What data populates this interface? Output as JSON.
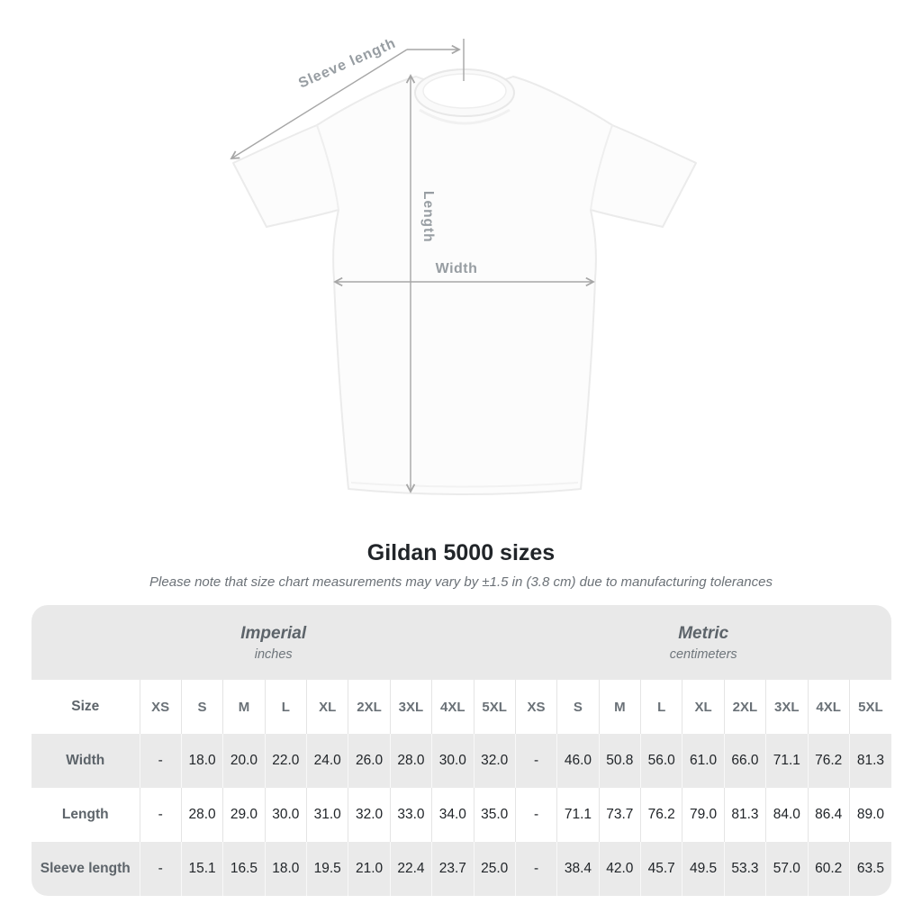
{
  "title": "Gildan 5000 sizes",
  "subtitle": "Please note that size chart measurements may vary by ±1.5 in (3.8 cm) due to manufacturing tolerances",
  "diagram": {
    "labels": {
      "sleeve_length": "Sleeve length",
      "length": "Length",
      "width": "Width"
    },
    "line_color": "#a6a6a6",
    "label_color": "#979da2",
    "shirt_color": "#fcfcfc"
  },
  "size_chart": {
    "unit_groups": [
      {
        "label": "Imperial",
        "sublabel": "inches",
        "colspan": 10
      },
      {
        "label": "Metric",
        "sublabel": "centimeters",
        "colspan": 9
      }
    ],
    "corner_header": "Size",
    "sizes": [
      "XS",
      "S",
      "M",
      "L",
      "XL",
      "2XL",
      "3XL",
      "4XL",
      "5XL"
    ],
    "rows": [
      {
        "label": "Width",
        "imperial": [
          "-",
          "18.0",
          "20.0",
          "22.0",
          "24.0",
          "26.0",
          "28.0",
          "30.0",
          "32.0"
        ],
        "metric": [
          "-",
          "46.0",
          "50.8",
          "56.0",
          "61.0",
          "66.0",
          "71.1",
          "76.2",
          "81.3"
        ]
      },
      {
        "label": "Length",
        "imperial": [
          "-",
          "28.0",
          "29.0",
          "30.0",
          "31.0",
          "32.0",
          "33.0",
          "34.0",
          "35.0"
        ],
        "metric": [
          "-",
          "71.1",
          "73.7",
          "76.2",
          "79.0",
          "81.3",
          "84.0",
          "86.4",
          "89.0"
        ]
      },
      {
        "label": "Sleeve length",
        "imperial": [
          "-",
          "15.1",
          "16.5",
          "18.0",
          "19.5",
          "21.0",
          "22.4",
          "23.7",
          "25.0"
        ],
        "metric": [
          "-",
          "38.4",
          "42.0",
          "45.7",
          "49.5",
          "53.3",
          "57.0",
          "60.2",
          "63.5"
        ]
      }
    ],
    "colors": {
      "band_bg": "#e9e9e9",
      "stripe_bg": "#eaeaea",
      "header_text": "#6a7177",
      "label_text": "#5d646a",
      "cell_text": "#212529"
    }
  }
}
